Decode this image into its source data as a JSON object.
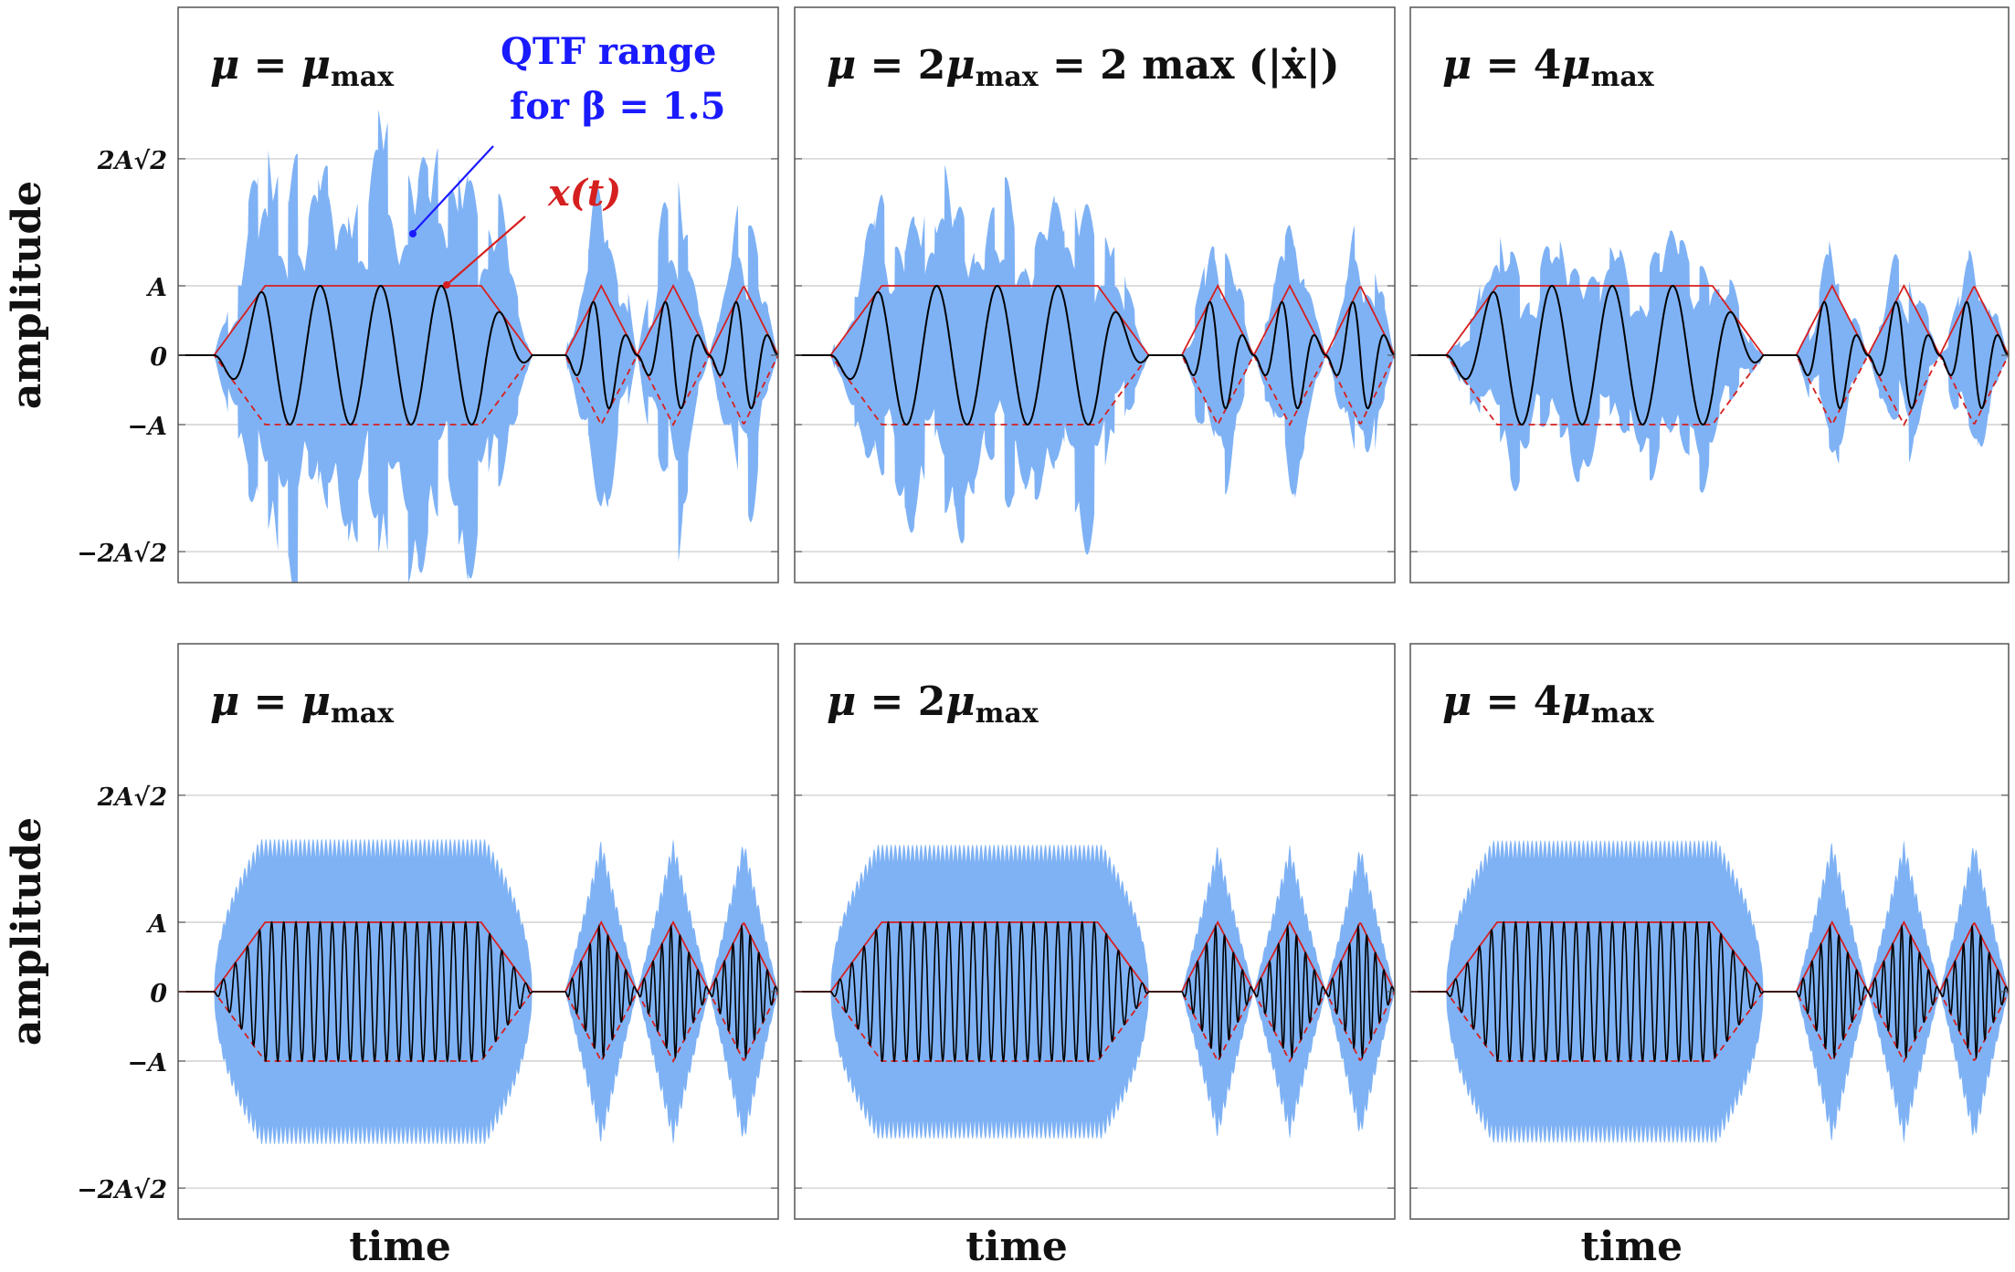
{
  "chart_data": [
    {
      "type": "line",
      "row": 1,
      "col": 1,
      "title_lhs": "μ",
      "title_rhs": "μ",
      "title_sub": "max",
      "title_eq": " = ",
      "title_coef": "",
      "mu_multiple": 1,
      "carrier_cycles": 5,
      "ylabel": "amplitude",
      "xlabel": "",
      "yticks": [
        "2A√2",
        "A",
        "0",
        "−A",
        "−2A√2"
      ],
      "ytick_values": [
        2.83,
        1,
        0,
        -1,
        -2.83
      ],
      "ylim": [
        -3.2,
        5.0
      ],
      "series": [
        {
          "name": "QTF range for β = 1.5",
          "role": "band",
          "color": "#7fb2f5"
        },
        {
          "name": "x(t)",
          "role": "signal",
          "color": "#000000"
        },
        {
          "name": "envelope",
          "role": "envelope",
          "color": "#d61f1f"
        }
      ]
    },
    {
      "type": "line",
      "row": 1,
      "col": 2,
      "title_lhs": "μ",
      "title_eq": " = ",
      "title_coef": "2",
      "title_rhs": "μ",
      "title_sub": "max",
      "title_extra": " = 2 max (|ẋ|)",
      "mu_multiple": 2,
      "carrier_cycles": 5,
      "xlabel": "",
      "ylim": [
        -3.2,
        5.0
      ]
    },
    {
      "type": "line",
      "row": 1,
      "col": 3,
      "title_lhs": "μ",
      "title_eq": " = ",
      "title_coef": "4",
      "title_rhs": "μ",
      "title_sub": "max",
      "mu_multiple": 4,
      "carrier_cycles": 5,
      "xlabel": "",
      "ylim": [
        -3.2,
        5.0
      ]
    },
    {
      "type": "line",
      "row": 2,
      "col": 1,
      "title_lhs": "μ",
      "title_eq": " = ",
      "title_coef": "",
      "title_rhs": "μ",
      "title_sub": "max",
      "mu_multiple": 1,
      "carrier_cycles": 25,
      "ylabel": "amplitude",
      "xlabel": "time",
      "yticks": [
        "2A√2",
        "A",
        "0",
        "−A",
        "−2A√2"
      ],
      "ytick_values": [
        2.83,
        1,
        0,
        -1,
        -2.83
      ],
      "ylim": [
        -3.2,
        5.0
      ]
    },
    {
      "type": "line",
      "row": 2,
      "col": 2,
      "title_lhs": "μ",
      "title_eq": " = ",
      "title_coef": "2",
      "title_rhs": "μ",
      "title_sub": "max",
      "mu_multiple": 2,
      "carrier_cycles": 25,
      "xlabel": "time",
      "ylim": [
        -3.2,
        5.0
      ]
    },
    {
      "type": "line",
      "row": 2,
      "col": 3,
      "title_lhs": "μ",
      "title_eq": " = ",
      "title_coef": "4",
      "title_rhs": "μ",
      "title_sub": "max",
      "mu_multiple": 4,
      "carrier_cycles": 25,
      "xlabel": "time",
      "ylim": [
        -3.2,
        5.0
      ]
    }
  ],
  "annotations": {
    "qtf_line1": "QTF range",
    "qtf_line2": "for β = 1.5",
    "signal_label": "x(t)"
  },
  "colors": {
    "band": "#7fb2f5",
    "signal": "#000000",
    "envelope": "#d61f1f",
    "grid": "#c8c8c8",
    "frame": "#555555",
    "annot_blue": "#1a1aff",
    "annot_red": "#d61f1f"
  }
}
